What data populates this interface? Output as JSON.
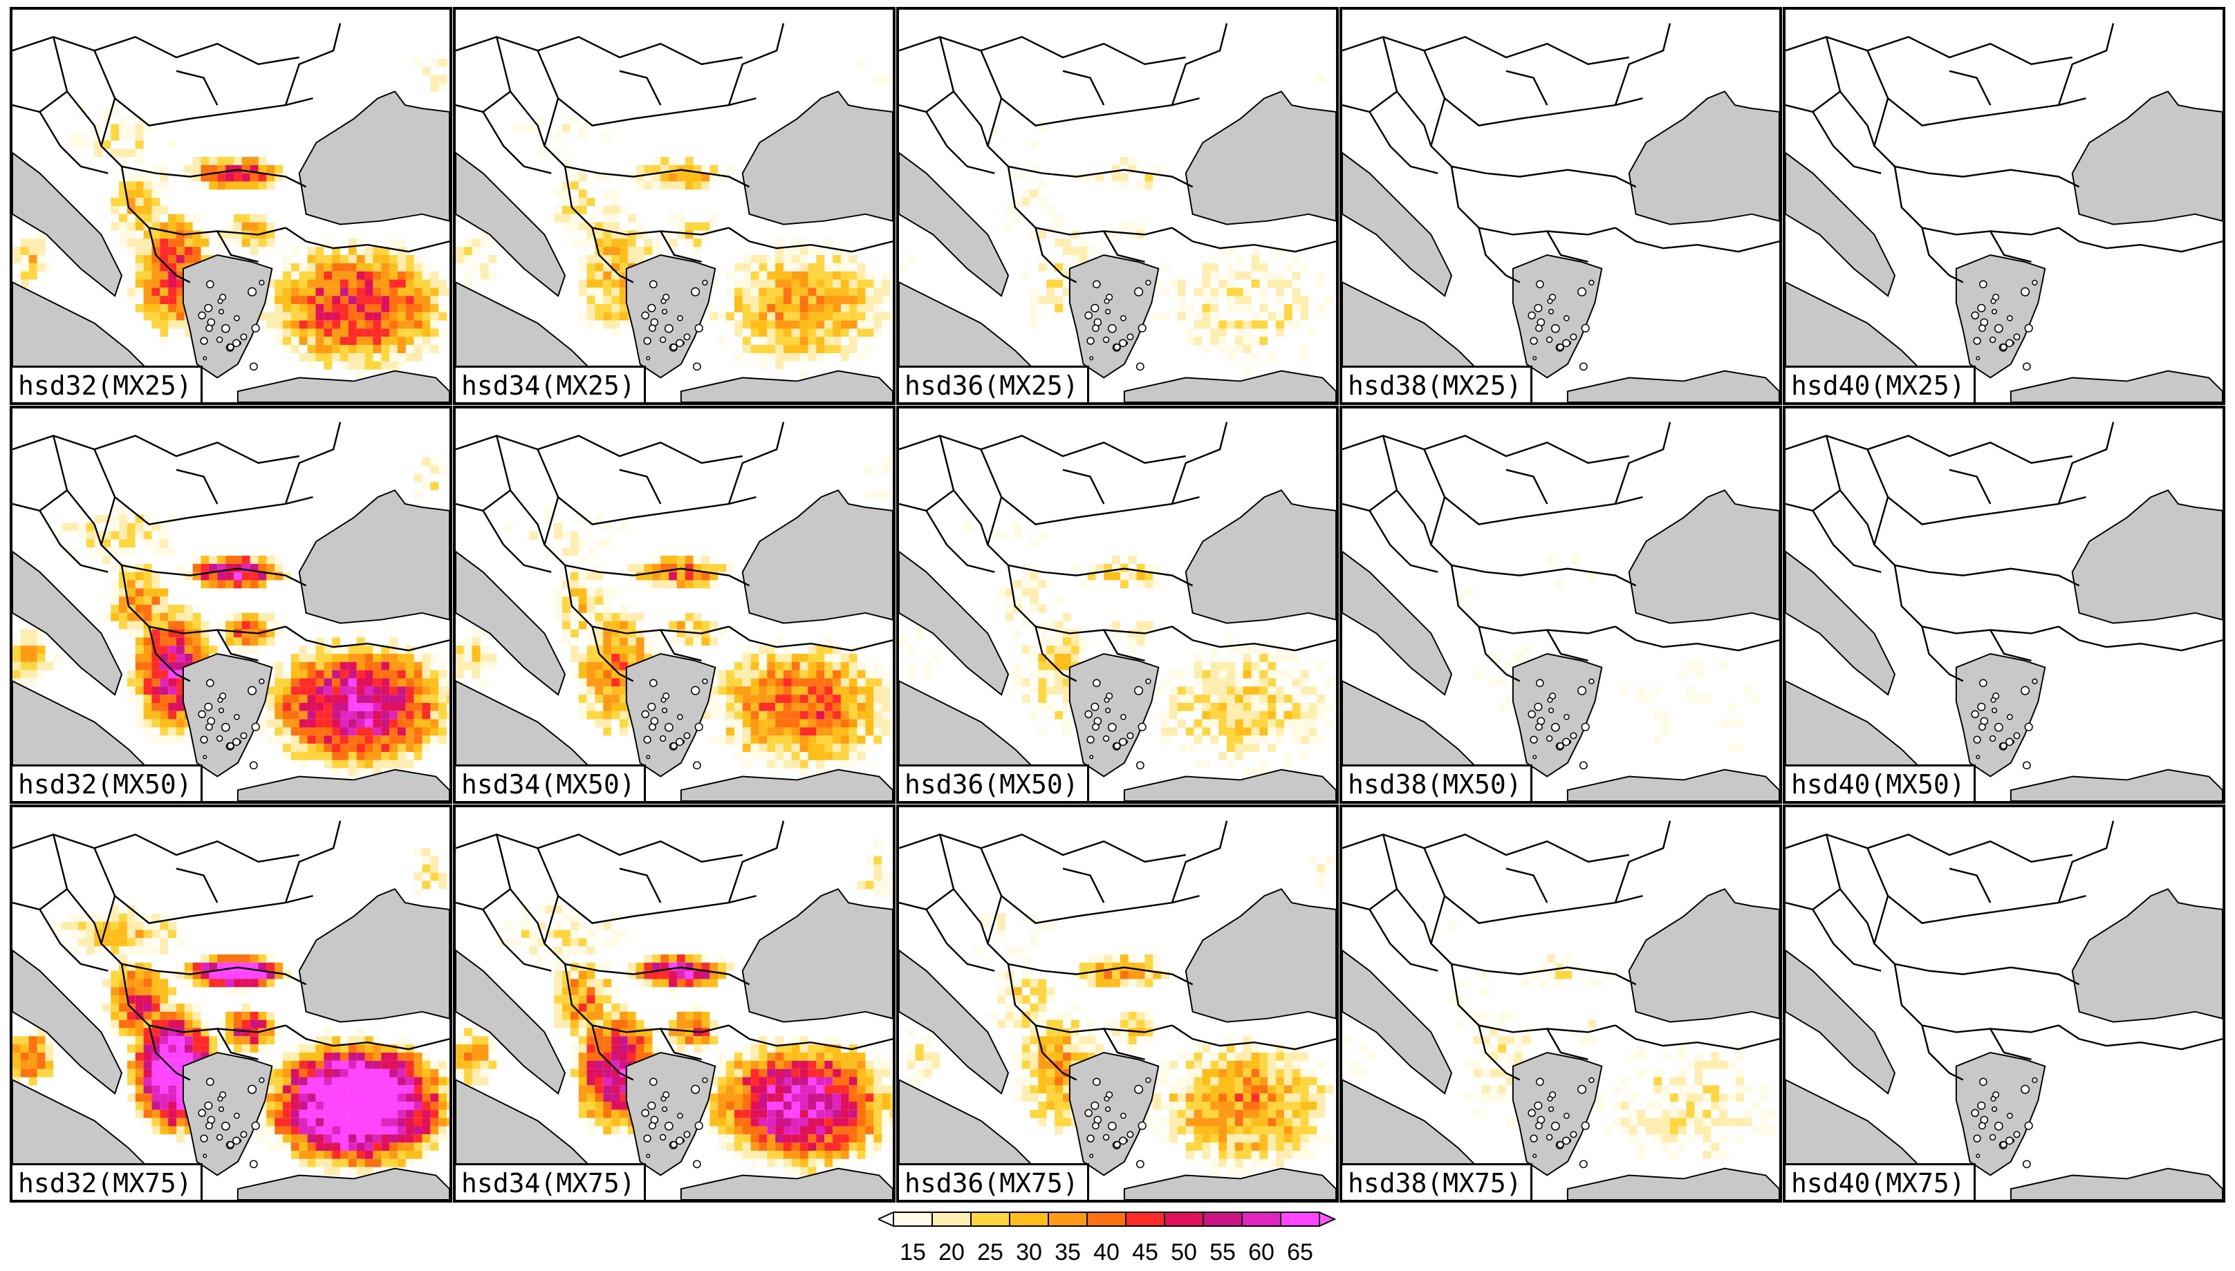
{
  "map": {
    "rows": [
      "MX25",
      "MX50",
      "MX75"
    ],
    "columns": [
      "hsd32",
      "hsd34",
      "hsd36",
      "hsd38",
      "hsd40"
    ],
    "panels": [
      {
        "label": "hsd32(MX25)",
        "intensity": 0.55
      },
      {
        "label": "hsd34(MX25)",
        "intensity": 0.38
      },
      {
        "label": "hsd36(MX25)",
        "intensity": 0.22
      },
      {
        "label": "hsd38(MX25)",
        "intensity": 0.05
      },
      {
        "label": "hsd40(MX25)",
        "intensity": 0.0
      },
      {
        "label": "hsd32(MX50)",
        "intensity": 0.68
      },
      {
        "label": "hsd34(MX50)",
        "intensity": 0.48
      },
      {
        "label": "hsd36(MX50)",
        "intensity": 0.28
      },
      {
        "label": "hsd38(MX50)",
        "intensity": 0.1
      },
      {
        "label": "hsd40(MX50)",
        "intensity": 0.02
      },
      {
        "label": "hsd32(MX75)",
        "intensity": 0.9
      },
      {
        "label": "hsd34(MX75)",
        "intensity": 0.7
      },
      {
        "label": "hsd36(MX75)",
        "intensity": 0.42
      },
      {
        "label": "hsd38(MX75)",
        "intensity": 0.2
      },
      {
        "label": "hsd40(MX75)",
        "intensity": 0.05
      }
    ],
    "colors": {
      "sea": "#c8c8c8",
      "land": "#ffffff",
      "border": "#000000"
    }
  },
  "colorbar": {
    "labels": [
      "15",
      "20",
      "25",
      "30",
      "35",
      "40",
      "45",
      "50",
      "55",
      "60",
      "65"
    ],
    "colors": [
      "#fffbe6",
      "#ffeeb0",
      "#ffd640",
      "#ffbd1a",
      "#ff9a14",
      "#ff7011",
      "#ff2a2a",
      "#e0105a",
      "#cc1489",
      "#e024c0",
      "#ff44ff"
    ],
    "under_color": "#ffffff",
    "over_color": "#ff55ff"
  }
}
